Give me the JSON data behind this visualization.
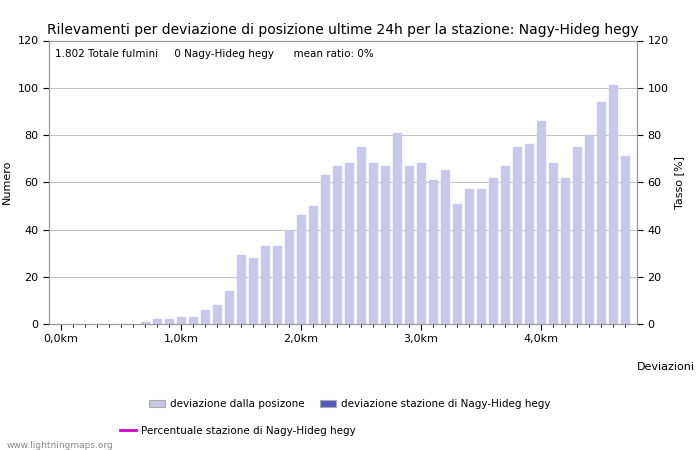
{
  "title": "Rilevamenti per deviazione di posizione ultime 24h per la stazione: Nagy-Hideg hegy",
  "subtitle": "1.802 Totale fulmini     0 Nagy-Hideg hegy      mean ratio: 0%",
  "xlabel": "Deviazioni",
  "ylabel_left": "Numero",
  "ylabel_right": "Tasso [%]",
  "ylim": [
    0,
    120
  ],
  "bar_color": "#c8c8e8",
  "bar_color2": "#5555bb",
  "line_color": "#cc00cc",
  "watermark": "www.lightningmaps.org",
  "xtick_labels": [
    "0,0km",
    "1,0km",
    "2,0km",
    "3,0km",
    "4,0km"
  ],
  "xtick_positions": [
    0,
    10,
    20,
    30,
    40
  ],
  "bar_values": [
    0,
    0,
    0,
    0,
    0,
    0,
    0,
    1,
    2,
    2,
    3,
    3,
    6,
    8,
    14,
    29,
    28,
    33,
    33,
    40,
    46,
    50,
    63,
    67,
    68,
    75,
    68,
    67,
    81,
    67,
    68,
    61,
    65,
    51,
    57,
    57,
    62,
    67,
    75,
    76,
    86,
    68,
    62,
    75,
    80,
    94,
    101,
    71
  ],
  "n_bars": 48,
  "legend_entries": [
    {
      "label": "deviazione dalla posizone",
      "color": "#c8c8e8",
      "type": "bar"
    },
    {
      "label": "deviazione stazione di Nagy-Hideg hegy",
      "color": "#5555bb",
      "type": "bar"
    },
    {
      "label": "Percentuale stazione di Nagy-Hideg hegy",
      "color": "#cc00cc",
      "type": "line"
    }
  ],
  "background_color": "#ffffff",
  "grid_color": "#aaaaaa",
  "title_fontsize": 10,
  "axis_fontsize": 8,
  "tick_fontsize": 8
}
